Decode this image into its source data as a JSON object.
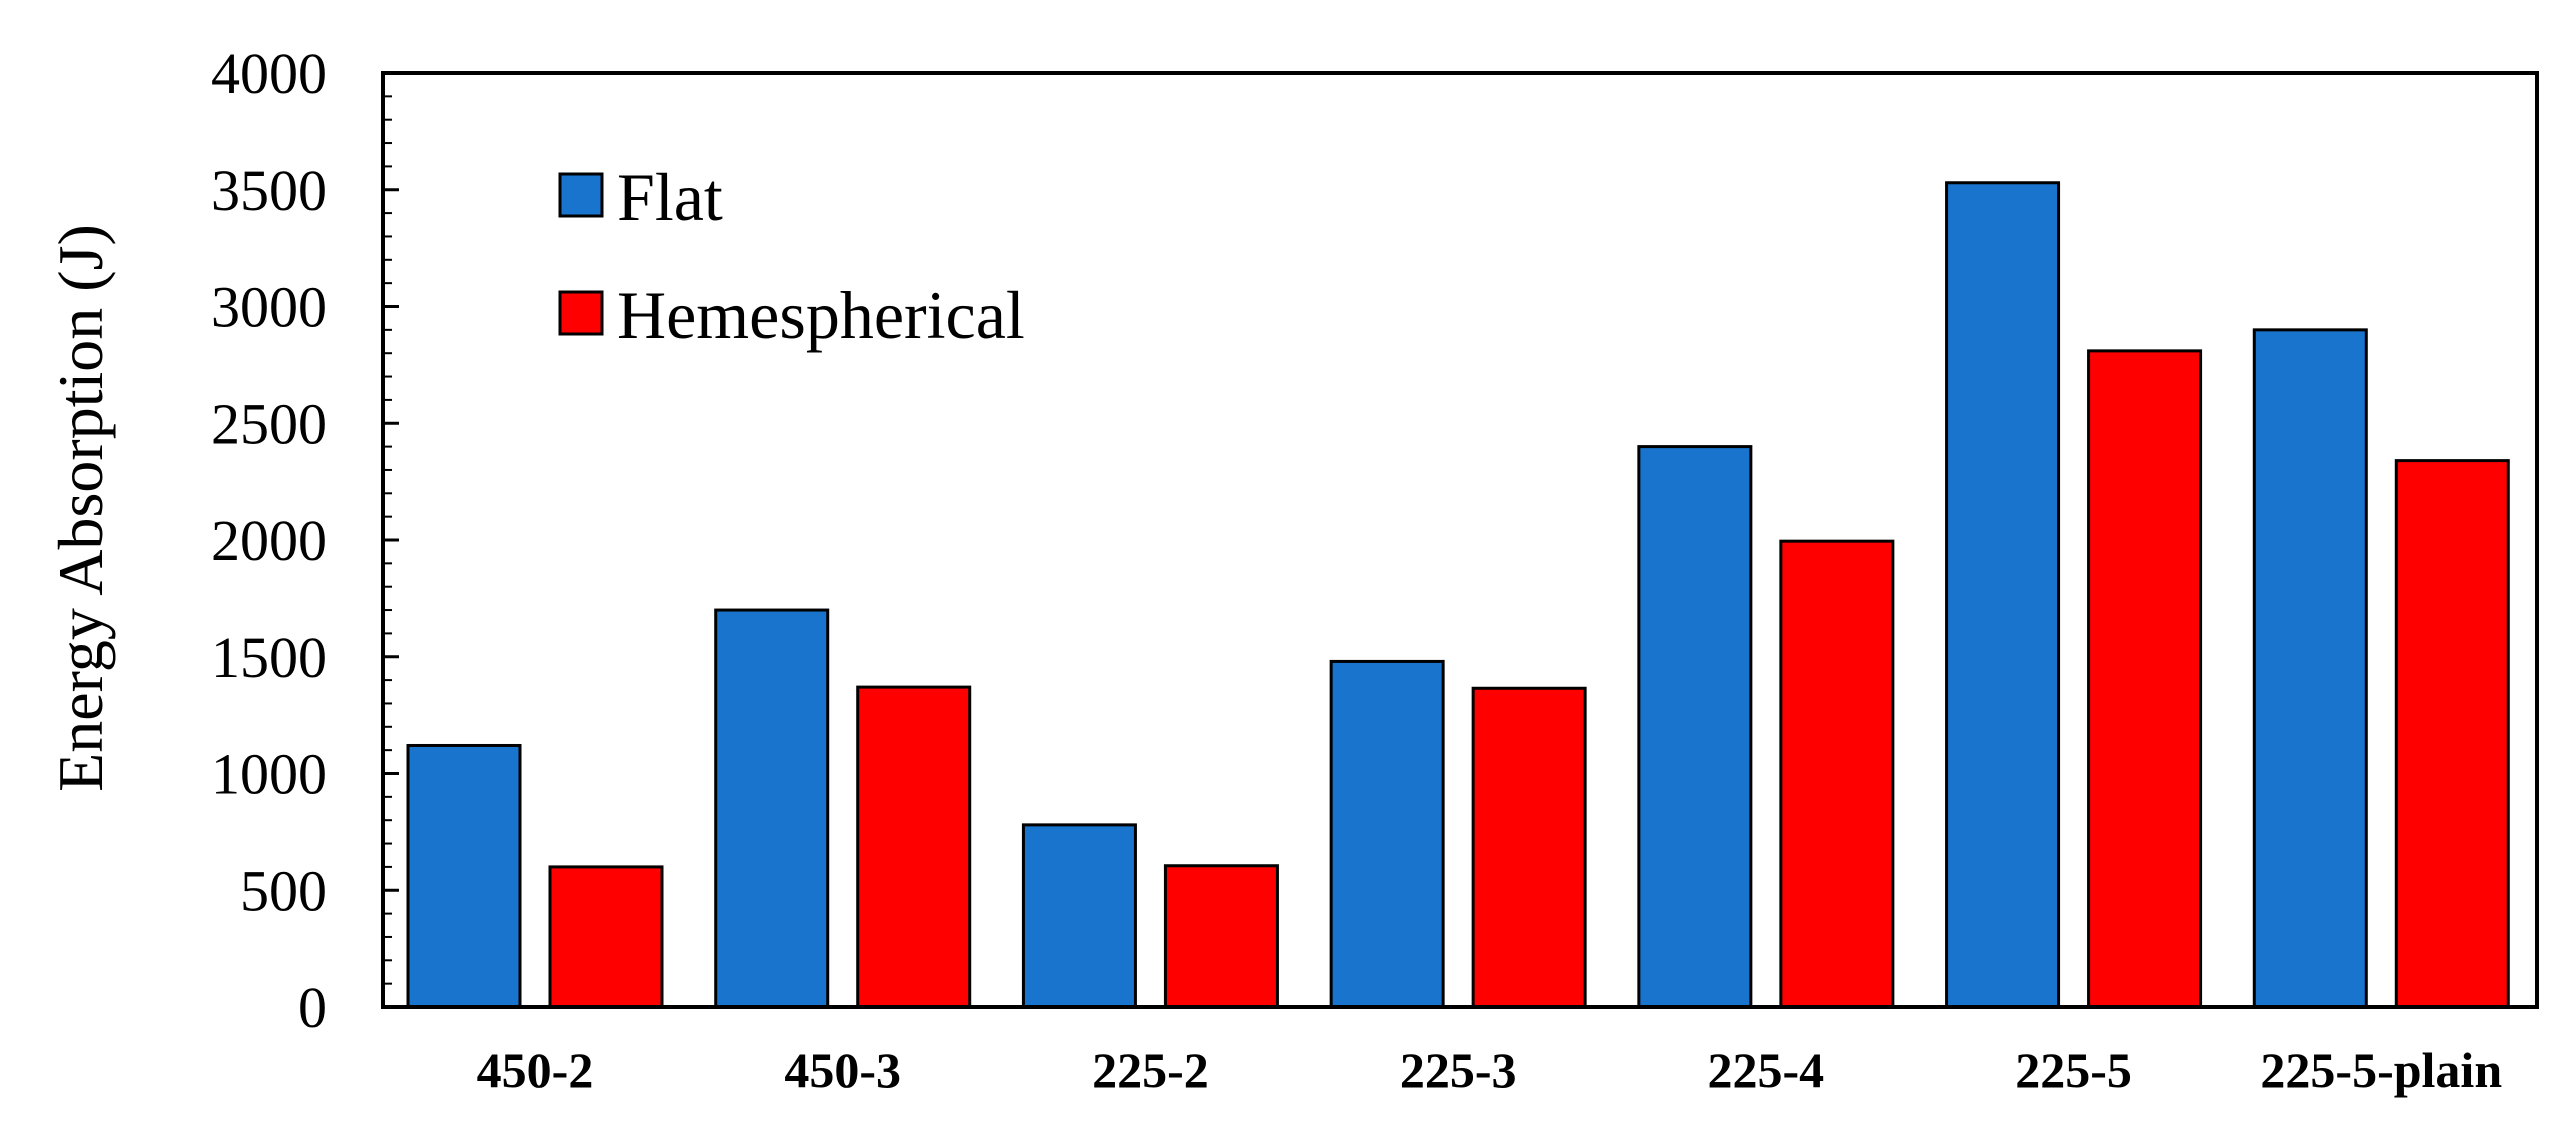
{
  "chart_data": {
    "type": "bar",
    "title": "",
    "xlabel": "",
    "ylabel": "Energy Absorption (J)",
    "ylim": [
      0,
      4000
    ],
    "yticks": [
      0,
      500,
      1000,
      1500,
      2000,
      2500,
      3000,
      3500,
      4000
    ],
    "grid": false,
    "legend_position": "top-left",
    "categories": [
      "450-2",
      "450-3",
      "225-2",
      "225-3",
      "225-4",
      "225-5",
      "225-5-plain"
    ],
    "series": [
      {
        "name": "Flat",
        "color": "#1874CD",
        "values": [
          1120,
          1700,
          780,
          1480,
          2400,
          3530,
          2900
        ]
      },
      {
        "name": "Hemespherical",
        "color": "#FF0000",
        "values": [
          600,
          1370,
          605,
          1365,
          1995,
          2810,
          2340
        ]
      }
    ]
  }
}
